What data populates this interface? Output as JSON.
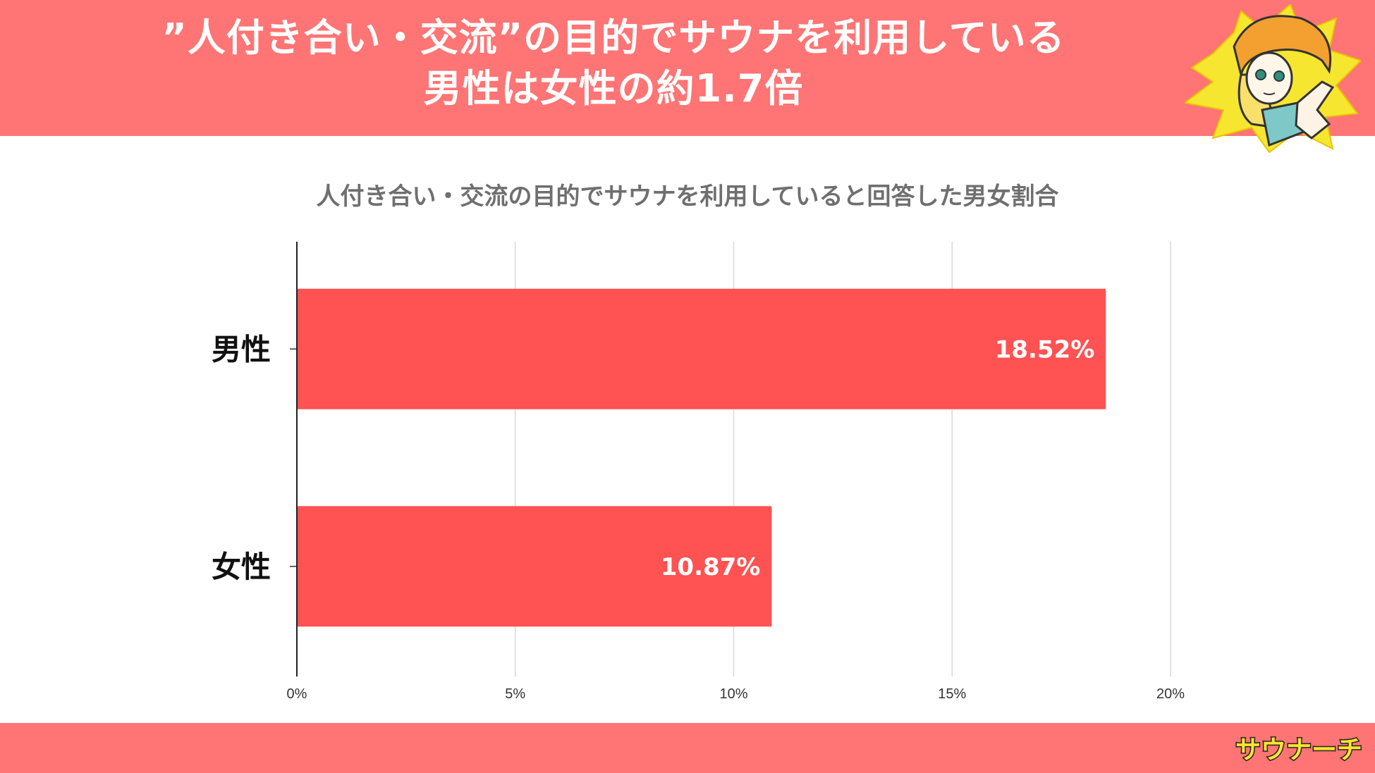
{
  "header": {
    "line1": "”人付き合い・交流”の目的でサウナを利用している",
    "line2": "男性は女性の約1.7倍"
  },
  "colors": {
    "band": "#ff7474",
    "bar": "#ff5252",
    "grid": "#d9d9d9",
    "title": "#6f6f6f"
  },
  "chart_data": {
    "type": "bar",
    "orientation": "horizontal",
    "title": "人付き合い・交流の目的でサウナを利用していると回答した男女割合",
    "categories": [
      "男性",
      "女性"
    ],
    "values": [
      18.52,
      10.87
    ],
    "value_labels": [
      "18.52%",
      "10.87%"
    ],
    "xlim": [
      0,
      20
    ],
    "x_ticks": [
      0,
      5,
      10,
      15,
      20
    ],
    "x_tick_labels": [
      "0%",
      "5%",
      "10%",
      "15%",
      "20%"
    ],
    "xlabel": "",
    "ylabel": "",
    "grid": true,
    "legend": "none"
  },
  "mascot": {
    "icon": "mascot-pointing-icon"
  },
  "footer": {
    "logo_text": "サウナーチ"
  }
}
